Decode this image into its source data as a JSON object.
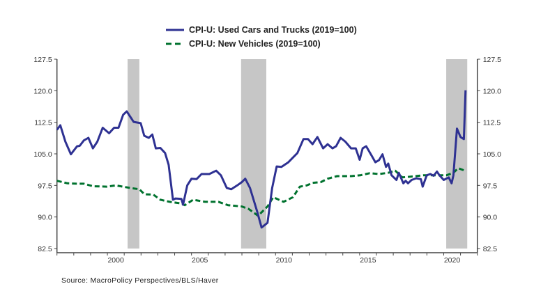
{
  "chart_data": {
    "type": "line",
    "title": "",
    "source": "Source: MacroPolicy Perspectives/BLS/Haver",
    "xlabel": "",
    "ylabel": "",
    "xlim": [
      1997,
      2022
    ],
    "ylim": [
      82.5,
      127.5
    ],
    "yticks": [
      "127.5",
      "120.0",
      "112.5",
      "105.0",
      "97.5",
      "90.0",
      "82.5"
    ],
    "ytick_values": [
      127.5,
      120.0,
      112.5,
      105.0,
      97.5,
      90.0,
      82.5
    ],
    "xticks": [
      "2000",
      "2005",
      "2010",
      "2015",
      "2020"
    ],
    "xtick_values": [
      2000,
      2005,
      2010,
      2015,
      2020
    ],
    "grid": false,
    "legend_position": "top-center",
    "recessions": [
      [
        2001.2,
        2001.9
      ],
      [
        2007.95,
        2009.45
      ],
      [
        2020.15,
        2021.4
      ]
    ],
    "recession_color": "#c6c6c6",
    "series": [
      {
        "name": "CPI-U: Used Cars and Trucks (2019=100)",
        "color": "#2e3192",
        "style": "solid",
        "x": [
          1997.0,
          1997.2,
          1997.5,
          1997.83,
          1998.2,
          1998.35,
          1998.6,
          1998.87,
          1999.14,
          1999.4,
          1999.72,
          2000.1,
          2000.4,
          2000.66,
          2000.94,
          2001.15,
          2001.56,
          2001.98,
          2002.19,
          2002.46,
          2002.67,
          2002.88,
          2003.15,
          2003.43,
          2003.64,
          2003.9,
          2004.05,
          2004.4,
          2004.5,
          2004.75,
          2005.0,
          2005.3,
          2005.6,
          2006.06,
          2006.47,
          2006.75,
          2007.1,
          2007.37,
          2007.72,
          2008.0,
          2008.2,
          2008.48,
          2008.9,
          2009.17,
          2009.52,
          2009.8,
          2010.07,
          2010.35,
          2010.76,
          2011.03,
          2011.3,
          2011.66,
          2011.93,
          2012.2,
          2012.49,
          2012.83,
          2013.1,
          2013.39,
          2013.6,
          2013.87,
          2014.15,
          2014.49,
          2014.77,
          2015.0,
          2015.18,
          2015.39,
          2015.74,
          2015.94,
          2016.15,
          2016.36,
          2016.57,
          2016.7,
          2016.9,
          2017.19,
          2017.33,
          2017.6,
          2017.74,
          2017.88,
          2018.09,
          2018.37,
          2018.64,
          2018.75,
          2018.99,
          2019.2,
          2019.4,
          2019.6,
          2019.75,
          2020.0,
          2020.3,
          2020.47,
          2020.58,
          2020.79,
          2021.0,
          2021.2,
          2021.3
        ],
        "values": [
          110.7,
          111.8,
          107.9,
          104.9,
          106.8,
          106.9,
          108.2,
          108.8,
          106.3,
          107.9,
          111.2,
          109.9,
          111.2,
          111.2,
          114.3,
          115.1,
          112.6,
          112.3,
          109.3,
          108.8,
          109.6,
          106.3,
          106.4,
          105.2,
          102.4,
          94.1,
          94.4,
          94.3,
          92.9,
          97.5,
          99.1,
          99.0,
          100.2,
          100.2,
          101.0,
          99.9,
          96.9,
          96.6,
          97.5,
          98.3,
          99.1,
          96.9,
          91.4,
          87.5,
          88.6,
          96.9,
          102.0,
          101.9,
          103.0,
          104.1,
          105.2,
          108.5,
          108.5,
          107.3,
          109.0,
          106.3,
          107.3,
          106.3,
          106.8,
          108.8,
          107.9,
          106.3,
          106.3,
          103.6,
          106.3,
          106.8,
          104.4,
          103.0,
          103.5,
          104.9,
          101.9,
          102.7,
          99.9,
          98.8,
          100.5,
          98.0,
          98.6,
          98.0,
          98.8,
          99.2,
          99.0,
          97.2,
          99.9,
          100.2,
          99.8,
          100.8,
          99.9,
          98.8,
          99.4,
          98.0,
          99.9,
          111.0,
          109.0,
          108.5,
          120.1
        ]
      },
      {
        "name": "CPI-U: New Vehicles (2019=100)",
        "color": "#00722e",
        "style": "dashed",
        "x": [
          1997.0,
          1997.62,
          1998.18,
          1998.6,
          1999.14,
          1999.97,
          2000.5,
          2001.36,
          2001.9,
          2002.2,
          2002.74,
          2003.15,
          2003.7,
          2004.4,
          2004.6,
          2005.1,
          2005.8,
          2006.6,
          2007.17,
          2008.0,
          2008.4,
          2008.96,
          2009.52,
          2009.86,
          2010.48,
          2011.03,
          2011.45,
          2011.86,
          2012.2,
          2012.7,
          2013.1,
          2013.66,
          2014.5,
          2015.04,
          2015.6,
          2016.15,
          2016.7,
          2017.12,
          2017.54,
          2018.09,
          2018.78,
          2019.47,
          2020.16,
          2020.58,
          2020.86,
          2021.27
        ],
        "values": [
          98.6,
          98.0,
          97.9,
          97.9,
          97.3,
          97.2,
          97.5,
          96.9,
          96.6,
          95.4,
          95.3,
          94.1,
          93.6,
          93.2,
          92.8,
          94.1,
          93.6,
          93.6,
          92.8,
          92.5,
          91.9,
          90.3,
          92.5,
          94.7,
          93.6,
          94.7,
          97.2,
          97.5,
          98.1,
          98.3,
          99.1,
          99.7,
          99.7,
          99.9,
          100.4,
          100.2,
          100.5,
          101.0,
          99.4,
          99.6,
          99.9,
          99.9,
          99.9,
          100.5,
          101.6,
          101.0
        ]
      }
    ]
  }
}
